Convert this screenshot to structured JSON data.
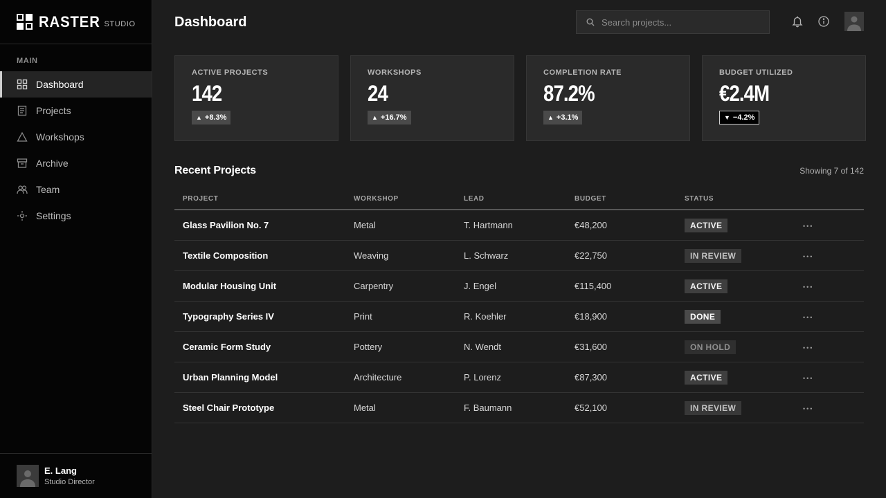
{
  "brand": {
    "name": "RASTER",
    "sub": "STUDIO"
  },
  "sidebar": {
    "section": "MAIN",
    "items": [
      {
        "label": "Dashboard",
        "icon": "grid-icon",
        "active": true
      },
      {
        "label": "Projects",
        "icon": "document-icon"
      },
      {
        "label": "Workshops",
        "icon": "triangle-icon"
      },
      {
        "label": "Archive",
        "icon": "archive-box-icon"
      },
      {
        "label": "Team",
        "icon": "users-icon"
      },
      {
        "label": "Settings",
        "icon": "gear-icon"
      }
    ]
  },
  "user": {
    "name": "E. Lang",
    "role": "Studio Director"
  },
  "header": {
    "title": "Dashboard",
    "search_placeholder": "Search projects..."
  },
  "cards": [
    {
      "label": "ACTIVE PROJECTS",
      "value": "142",
      "trend": "+8.3%",
      "direction": "up"
    },
    {
      "label": "WORKSHOPS",
      "value": "24",
      "trend": "+16.7%",
      "direction": "up"
    },
    {
      "label": "COMPLETION RATE",
      "value": "87.2%",
      "trend": "+3.1%",
      "direction": "up"
    },
    {
      "label": "BUDGET UTILIZED",
      "value": "€2.4M",
      "trend": "−4.2%",
      "direction": "down"
    }
  ],
  "recent": {
    "title": "Recent Projects",
    "count": "Showing 7 of 142",
    "columns": [
      "PROJECT",
      "WORKSHOP",
      "LEAD",
      "BUDGET",
      "STATUS"
    ],
    "rows": [
      {
        "project": "Glass Pavilion No. 7",
        "workshop": "Metal",
        "lead": "T. Hartmann",
        "budget": "€48,200",
        "status": "ACTIVE",
        "kind": "active"
      },
      {
        "project": "Textile Composition",
        "workshop": "Weaving",
        "lead": "L. Schwarz",
        "budget": "€22,750",
        "status": "IN REVIEW",
        "kind": "review"
      },
      {
        "project": "Modular Housing Unit",
        "workshop": "Carpentry",
        "lead": "J. Engel",
        "budget": "€115,400",
        "status": "ACTIVE",
        "kind": "active"
      },
      {
        "project": "Typography Series IV",
        "workshop": "Print",
        "lead": "R. Koehler",
        "budget": "€18,900",
        "status": "DONE",
        "kind": "done"
      },
      {
        "project": "Ceramic Form Study",
        "workshop": "Pottery",
        "lead": "N. Wendt",
        "budget": "€31,600",
        "status": "ON HOLD",
        "kind": "hold"
      },
      {
        "project": "Urban Planning Model",
        "workshop": "Architecture",
        "lead": "P. Lorenz",
        "budget": "€87,300",
        "status": "ACTIVE",
        "kind": "active"
      },
      {
        "project": "Steel Chair Prototype",
        "workshop": "Metal",
        "lead": "F. Baumann",
        "budget": "€52,100",
        "status": "IN REVIEW",
        "kind": "review"
      }
    ]
  }
}
